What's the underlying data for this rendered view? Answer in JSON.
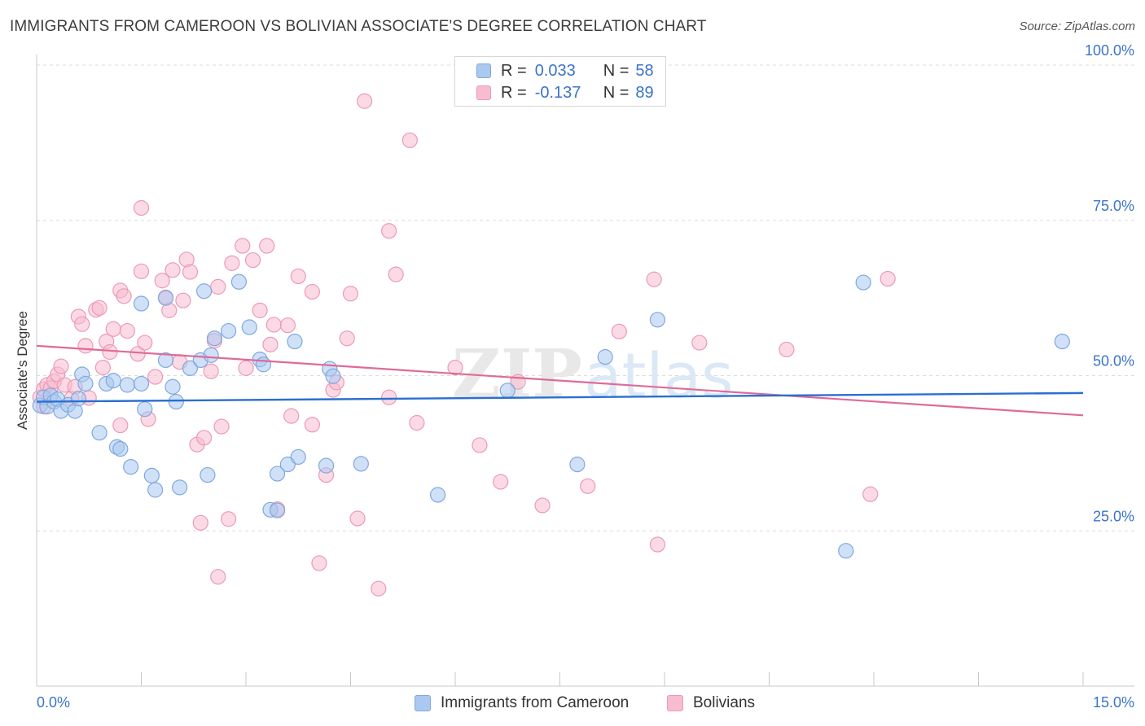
{
  "header": {
    "title": "IMMIGRANTS FROM CAMEROON VS BOLIVIAN ASSOCIATE'S DEGREE CORRELATION CHART",
    "source": "Source: ZipAtlas.com"
  },
  "legend": {
    "rows": [
      {
        "r_label": "R =",
        "r_value": "0.033",
        "n_label": "N =",
        "n_value": "58"
      },
      {
        "r_label": "R =",
        "r_value": "-0.137",
        "n_label": "N =",
        "n_value": "89"
      }
    ],
    "bottom": [
      "Immigrants from Cameroon",
      "Bolivians"
    ]
  },
  "watermark": {
    "zip": "ZIP",
    "atlas": "atlas"
  },
  "colors": {
    "blue_fill": "#aac8f0",
    "blue_stroke": "#7fa8e0",
    "blue_line": "#2a6fd1",
    "pink_fill": "#f7bcd0",
    "pink_stroke": "#ec9ab5",
    "pink_line": "#e06a98",
    "axis_text": "#3a74c9",
    "grid": "#dcdcdc"
  },
  "chart_data": {
    "type": "scatter",
    "title": "IMMIGRANTS FROM CAMEROON VS BOLIVIAN ASSOCIATE'S DEGREE CORRELATION CHART",
    "xlabel": "",
    "ylabel": "Associate's Degree",
    "xlim": [
      0,
      15
    ],
    "ylim": [
      0,
      100
    ],
    "x_tick_labels": [
      "0.0%",
      "15.0%"
    ],
    "y_tick_labels": [
      "25.0%",
      "50.0%",
      "75.0%",
      "100.0%"
    ],
    "y_ticks": [
      25,
      50,
      75,
      100
    ],
    "grid": "horizontal dashed",
    "series": [
      {
        "name": "Immigrants from Cameroon",
        "R": 0.033,
        "N": 58,
        "trend": [
          [
            0,
            45.8
          ],
          [
            15,
            47.2
          ]
        ],
        "points": [
          [
            0.05,
            45.2
          ],
          [
            0.1,
            46.5
          ],
          [
            0.15,
            45.0
          ],
          [
            0.2,
            46.8
          ],
          [
            0.25,
            45.8
          ],
          [
            0.3,
            46.2
          ],
          [
            0.35,
            44.3
          ],
          [
            0.45,
            45.3
          ],
          [
            0.55,
            44.3
          ],
          [
            0.6,
            46.3
          ],
          [
            0.65,
            50.2
          ],
          [
            0.7,
            48.7
          ],
          [
            0.9,
            40.8
          ],
          [
            1.0,
            48.7
          ],
          [
            1.1,
            49.2
          ],
          [
            1.15,
            38.5
          ],
          [
            1.2,
            38.2
          ],
          [
            1.3,
            48.5
          ],
          [
            1.35,
            35.3
          ],
          [
            1.5,
            48.7
          ],
          [
            1.5,
            61.6
          ],
          [
            1.55,
            44.6
          ],
          [
            1.65,
            33.9
          ],
          [
            1.7,
            31.6
          ],
          [
            1.85,
            52.5
          ],
          [
            1.85,
            62.5
          ],
          [
            1.95,
            48.2
          ],
          [
            2.0,
            45.8
          ],
          [
            2.05,
            32.0
          ],
          [
            2.2,
            51.2
          ],
          [
            2.35,
            52.5
          ],
          [
            2.4,
            63.6
          ],
          [
            2.45,
            34.0
          ],
          [
            2.5,
            53.3
          ],
          [
            2.55,
            56.0
          ],
          [
            2.75,
            57.2
          ],
          [
            2.9,
            65.1
          ],
          [
            3.05,
            57.8
          ],
          [
            3.2,
            52.6
          ],
          [
            3.25,
            51.8
          ],
          [
            3.35,
            28.4
          ],
          [
            3.45,
            28.3
          ],
          [
            3.45,
            34.2
          ],
          [
            3.6,
            35.7
          ],
          [
            3.7,
            55.5
          ],
          [
            3.75,
            36.9
          ],
          [
            4.15,
            35.5
          ],
          [
            4.2,
            51.1
          ],
          [
            4.25,
            49.9
          ],
          [
            4.65,
            35.8
          ],
          [
            5.75,
            30.8
          ],
          [
            6.75,
            47.6
          ],
          [
            7.75,
            35.7
          ],
          [
            8.15,
            53.0
          ],
          [
            8.9,
            59.0
          ],
          [
            11.6,
            21.8
          ],
          [
            11.85,
            65.0
          ],
          [
            14.7,
            55.5
          ]
        ]
      },
      {
        "name": "Bolivians",
        "R": -0.137,
        "N": 89,
        "trend": [
          [
            0,
            54.8
          ],
          [
            15,
            43.6
          ]
        ],
        "points": [
          [
            0.05,
            46.5
          ],
          [
            0.1,
            47.8
          ],
          [
            0.15,
            48.5
          ],
          [
            0.2,
            48.0
          ],
          [
            0.25,
            49.1
          ],
          [
            0.3,
            50.2
          ],
          [
            0.35,
            51.5
          ],
          [
            0.4,
            48.5
          ],
          [
            0.5,
            46.3
          ],
          [
            0.55,
            48.2
          ],
          [
            0.6,
            59.5
          ],
          [
            0.65,
            58.3
          ],
          [
            0.7,
            54.8
          ],
          [
            0.75,
            46.4
          ],
          [
            0.85,
            60.6
          ],
          [
            0.9,
            60.9
          ],
          [
            0.95,
            51.3
          ],
          [
            1.0,
            55.5
          ],
          [
            1.05,
            53.8
          ],
          [
            1.1,
            57.5
          ],
          [
            1.2,
            42.0
          ],
          [
            1.2,
            63.7
          ],
          [
            1.25,
            62.8
          ],
          [
            1.3,
            57.2
          ],
          [
            1.45,
            53.5
          ],
          [
            1.5,
            77.0
          ],
          [
            1.5,
            66.8
          ],
          [
            1.55,
            55.3
          ],
          [
            1.6,
            43.0
          ],
          [
            1.7,
            49.8
          ],
          [
            1.8,
            65.3
          ],
          [
            1.85,
            62.6
          ],
          [
            1.9,
            60.5
          ],
          [
            1.95,
            67.0
          ],
          [
            2.05,
            52.2
          ],
          [
            2.1,
            62.1
          ],
          [
            2.15,
            68.7
          ],
          [
            2.2,
            66.7
          ],
          [
            2.3,
            38.9
          ],
          [
            2.4,
            40.0
          ],
          [
            2.5,
            50.7
          ],
          [
            2.55,
            55.6
          ],
          [
            2.6,
            64.3
          ],
          [
            2.65,
            41.8
          ],
          [
            2.75,
            26.9
          ],
          [
            2.8,
            68.1
          ],
          [
            2.95,
            70.9
          ],
          [
            3.0,
            51.2
          ],
          [
            3.1,
            68.6
          ],
          [
            3.2,
            60.5
          ],
          [
            3.3,
            70.9
          ],
          [
            3.35,
            55.0
          ],
          [
            3.4,
            58.2
          ],
          [
            3.6,
            58.1
          ],
          [
            3.65,
            43.5
          ],
          [
            3.75,
            66.0
          ],
          [
            3.95,
            42.1
          ],
          [
            3.95,
            63.5
          ],
          [
            4.05,
            19.8
          ],
          [
            4.15,
            34.0
          ],
          [
            4.25,
            47.7
          ],
          [
            4.3,
            48.9
          ],
          [
            4.45,
            56.0
          ],
          [
            4.5,
            63.2
          ],
          [
            4.6,
            27.0
          ],
          [
            4.7,
            94.2
          ],
          [
            4.9,
            15.7
          ],
          [
            5.05,
            73.3
          ],
          [
            5.15,
            66.3
          ],
          [
            5.35,
            87.9
          ],
          [
            5.45,
            42.4
          ],
          [
            6.0,
            51.3
          ],
          [
            6.35,
            38.8
          ],
          [
            6.65,
            32.9
          ],
          [
            6.9,
            49.0
          ],
          [
            7.25,
            29.1
          ],
          [
            7.9,
            32.2
          ],
          [
            8.35,
            57.1
          ],
          [
            8.85,
            65.5
          ],
          [
            8.9,
            22.8
          ],
          [
            9.5,
            55.3
          ],
          [
            10.75,
            54.2
          ],
          [
            11.95,
            30.9
          ],
          [
            12.2,
            65.6
          ],
          [
            0.1,
            45.0
          ],
          [
            2.35,
            26.3
          ],
          [
            2.6,
            17.6
          ],
          [
            3.45,
            28.5
          ],
          [
            5.05,
            46.5
          ]
        ]
      }
    ]
  }
}
